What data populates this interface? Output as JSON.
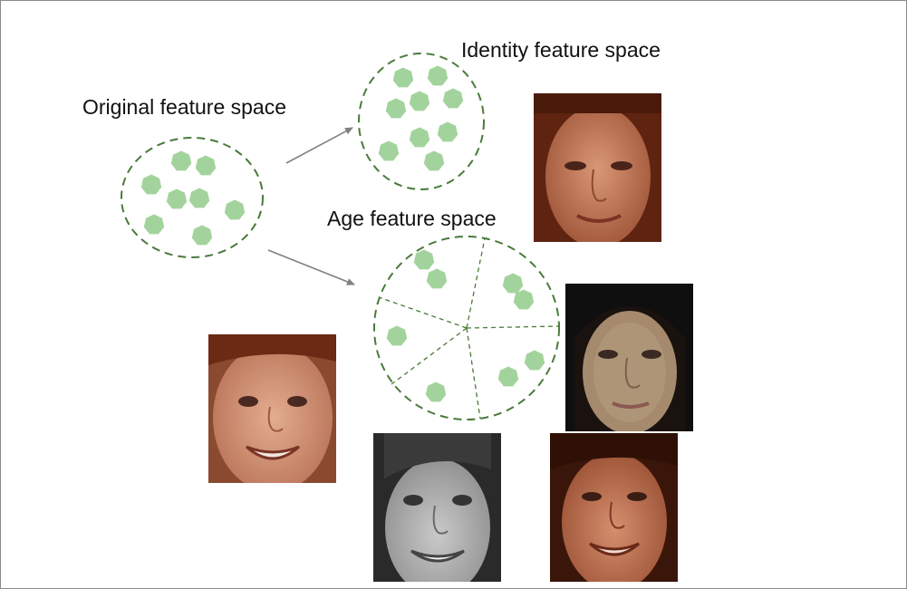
{
  "labels": {
    "original": "Original feature space",
    "identity": "Identity feature space",
    "age": "Age feature space"
  },
  "colors": {
    "dot_fill": "#a3d39c",
    "circle_stroke": "#4a7a3a",
    "arrow": "#808080"
  },
  "photos": [
    {
      "name": "young-woman-face-photo",
      "tone": "color-warm"
    },
    {
      "name": "adult-woman-face-photo",
      "tone": "color-dark"
    },
    {
      "name": "young-boy-face-photo",
      "tone": "color-warm"
    },
    {
      "name": "young-girl-face-photo",
      "tone": "grayscale"
    },
    {
      "name": "teen-girl-face-photo",
      "tone": "color-warm"
    }
  ]
}
